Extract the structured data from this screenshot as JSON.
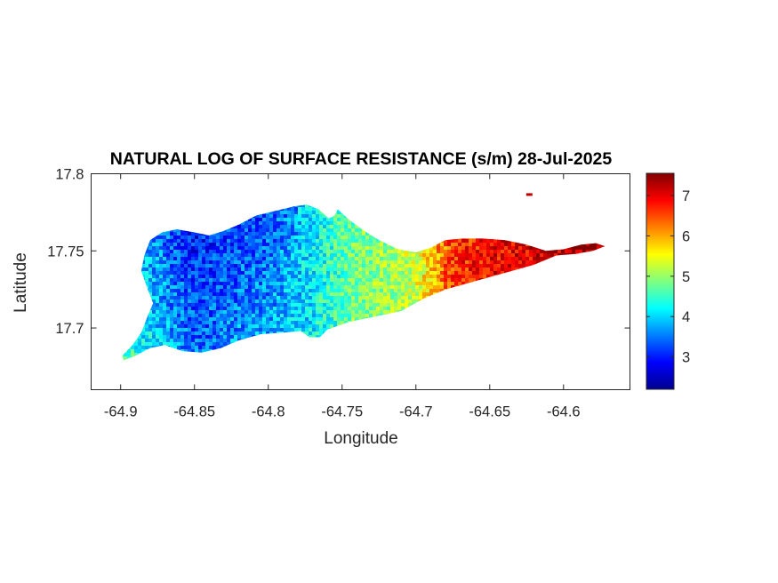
{
  "chart_data": {
    "type": "heatmap",
    "title": "NATURAL LOG OF SURFACE RESISTANCE (s/m) 28-Jul-2025",
    "xlabel": "Longitude",
    "ylabel": "Latitude",
    "xlim": [
      -64.92,
      -64.555
    ],
    "ylim": [
      17.66,
      17.8
    ],
    "x_ticks": [
      -64.9,
      -64.85,
      -64.8,
      -64.75,
      -64.7,
      -64.65,
      -64.6
    ],
    "x_tick_labels": [
      "-64.9",
      "-64.85",
      "-64.8",
      "-64.75",
      "-64.7",
      "-64.65",
      "-64.6"
    ],
    "y_ticks": [
      17.7,
      17.75,
      17.8
    ],
    "y_tick_labels": [
      "17.7",
      "17.75",
      "17.8"
    ],
    "colorbar": {
      "colormap": "jet",
      "range": [
        2.2,
        7.55
      ],
      "ticks": [
        3,
        4,
        5,
        6,
        7
      ],
      "tick_labels": [
        "3",
        "4",
        "5",
        "6",
        "7"
      ]
    },
    "island_outline_lonlat": [
      [
        -64.899,
        17.682
      ],
      [
        -64.892,
        17.689
      ],
      [
        -64.886,
        17.697
      ],
      [
        -64.882,
        17.707
      ],
      [
        -64.878,
        17.716
      ],
      [
        -64.882,
        17.726
      ],
      [
        -64.886,
        17.737
      ],
      [
        -64.884,
        17.747
      ],
      [
        -64.88,
        17.757
      ],
      [
        -64.872,
        17.762
      ],
      [
        -64.862,
        17.764
      ],
      [
        -64.85,
        17.762
      ],
      [
        -64.84,
        17.76
      ],
      [
        -64.83,
        17.763
      ],
      [
        -64.82,
        17.767
      ],
      [
        -64.808,
        17.773
      ],
      [
        -64.795,
        17.776
      ],
      [
        -64.782,
        17.779
      ],
      [
        -64.774,
        17.78
      ],
      [
        -64.766,
        17.777
      ],
      [
        -64.759,
        17.771
      ],
      [
        -64.755,
        17.773
      ],
      [
        -64.753,
        17.777
      ],
      [
        -64.745,
        17.77
      ],
      [
        -64.735,
        17.763
      ],
      [
        -64.725,
        17.757
      ],
      [
        -64.712,
        17.751
      ],
      [
        -64.7,
        17.749
      ],
      [
        -64.69,
        17.752
      ],
      [
        -64.68,
        17.757
      ],
      [
        -64.668,
        17.758
      ],
      [
        -64.655,
        17.758
      ],
      [
        -64.64,
        17.757
      ],
      [
        -64.625,
        17.754
      ],
      [
        -64.612,
        17.75
      ],
      [
        -64.6,
        17.751
      ],
      [
        -64.588,
        17.754
      ],
      [
        -64.578,
        17.755
      ],
      [
        -64.572,
        17.753
      ],
      [
        -64.58,
        17.75
      ],
      [
        -64.592,
        17.748
      ],
      [
        -64.605,
        17.747
      ],
      [
        -64.62,
        17.741
      ],
      [
        -64.635,
        17.737
      ],
      [
        -64.65,
        17.733
      ],
      [
        -64.665,
        17.729
      ],
      [
        -64.68,
        17.725
      ],
      [
        -64.695,
        17.719
      ],
      [
        -64.71,
        17.711
      ],
      [
        -64.725,
        17.708
      ],
      [
        -64.745,
        17.704
      ],
      [
        -64.76,
        17.699
      ],
      [
        -64.765,
        17.694
      ],
      [
        -64.772,
        17.694
      ],
      [
        -64.778,
        17.698
      ],
      [
        -64.79,
        17.697
      ],
      [
        -64.805,
        17.696
      ],
      [
        -64.82,
        17.692
      ],
      [
        -64.832,
        17.687
      ],
      [
        -64.845,
        17.684
      ],
      [
        -64.858,
        17.685
      ],
      [
        -64.87,
        17.689
      ],
      [
        -64.88,
        17.687
      ],
      [
        -64.89,
        17.682
      ],
      [
        -64.898,
        17.679
      ]
    ],
    "islet_lonlat": [
      -64.6235,
      17.7865
    ],
    "value_gradient_by_longitude": [
      [
        -64.9,
        4.4
      ],
      [
        -64.875,
        3.7
      ],
      [
        -64.85,
        3.1
      ],
      [
        -64.82,
        3.4
      ],
      [
        -64.8,
        3.5
      ],
      [
        -64.78,
        3.9
      ],
      [
        -64.76,
        4.4
      ],
      [
        -64.74,
        4.8
      ],
      [
        -64.72,
        5.0
      ],
      [
        -64.7,
        5.3
      ],
      [
        -64.69,
        5.8
      ],
      [
        -64.675,
        6.6
      ],
      [
        -64.65,
        6.9
      ],
      [
        -64.62,
        7.0
      ],
      [
        -64.6,
        7.3
      ],
      [
        -64.58,
        7.5
      ]
    ]
  }
}
